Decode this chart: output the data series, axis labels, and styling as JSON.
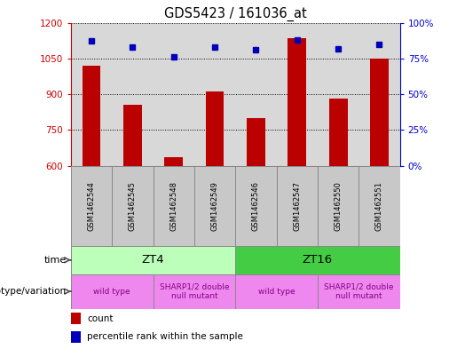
{
  "title": "GDS5423 / 161036_at",
  "samples": [
    "GSM1462544",
    "GSM1462545",
    "GSM1462548",
    "GSM1462549",
    "GSM1462546",
    "GSM1462547",
    "GSM1462550",
    "GSM1462551"
  ],
  "counts": [
    1020,
    855,
    635,
    910,
    800,
    1135,
    880,
    1050
  ],
  "percentile_ranks": [
    87,
    83,
    76,
    83,
    81,
    88,
    82,
    85
  ],
  "ylim_left": [
    600,
    1200
  ],
  "ylim_right": [
    0,
    100
  ],
  "yticks_left": [
    600,
    750,
    900,
    1050,
    1200
  ],
  "yticks_right": [
    0,
    25,
    50,
    75,
    100
  ],
  "bar_color": "#bb0000",
  "dot_color": "#0000bb",
  "time_groups": [
    {
      "label": "ZT4",
      "start": 0,
      "end": 4,
      "color": "#bbffbb"
    },
    {
      "label": "ZT16",
      "start": 4,
      "end": 8,
      "color": "#44cc44"
    }
  ],
  "genotype_groups": [
    {
      "label": "wild type",
      "start": 0,
      "end": 2
    },
    {
      "label": "SHARP1/2 double\nnull mutant",
      "start": 2,
      "end": 4
    },
    {
      "label": "wild type",
      "start": 4,
      "end": 6
    },
    {
      "label": "SHARP1/2 double\nnull mutant",
      "start": 6,
      "end": 8
    }
  ],
  "geno_color": "#ee88ee",
  "geno_text_color": "#880088",
  "row_label_time": "time",
  "row_label_genotype": "genotype/variation",
  "legend_count": "count",
  "legend_percentile": "percentile rank within the sample",
  "plot_bg_color": "#d8d8d8",
  "left_axis_color": "#cc0000",
  "right_axis_color": "#0000cc",
  "sample_box_color": "#c8c8c8",
  "sample_box_edge": "#888888"
}
